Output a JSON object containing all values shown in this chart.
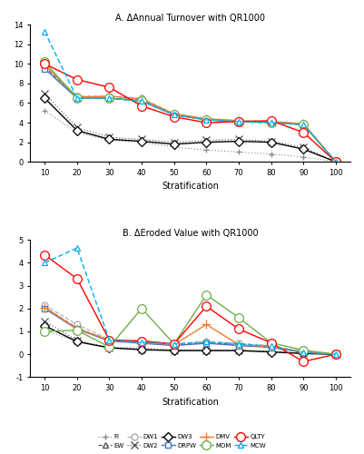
{
  "title_a": "A. ΔAnnual Turnover with QR1000",
  "title_b": "B. ΔEroded Value with QR1000",
  "xlabel": "Stratification",
  "x": [
    10,
    20,
    30,
    40,
    50,
    60,
    70,
    80,
    90,
    100
  ],
  "series_a": {
    "FI": [
      5.2,
      3.0,
      2.2,
      2.0,
      1.5,
      1.2,
      1.0,
      0.8,
      0.5,
      0.0
    ],
    "EW": [
      9.7,
      6.6,
      6.5,
      6.3,
      4.8,
      4.3,
      4.1,
      4.0,
      3.8,
      0.0
    ],
    "DW1": [
      9.8,
      6.7,
      6.7,
      6.5,
      4.9,
      4.4,
      4.2,
      4.1,
      3.9,
      0.0
    ],
    "DW2": [
      7.0,
      3.5,
      2.5,
      2.3,
      2.0,
      2.2,
      2.3,
      2.1,
      1.5,
      0.0
    ],
    "DW3": [
      6.5,
      3.2,
      2.3,
      2.1,
      1.8,
      2.0,
      2.1,
      2.0,
      1.3,
      0.0
    ],
    "DRPW": [
      9.5,
      6.5,
      6.5,
      6.2,
      4.8,
      4.3,
      4.1,
      4.1,
      3.8,
      0.0
    ],
    "DMV": [
      9.9,
      6.6,
      6.7,
      6.4,
      4.9,
      4.4,
      4.2,
      4.1,
      3.9,
      0.0
    ],
    "MOM": [
      10.2,
      6.5,
      6.5,
      6.2,
      4.8,
      4.3,
      4.1,
      4.0,
      3.8,
      0.0
    ],
    "QLTY": [
      10.0,
      8.4,
      7.6,
      5.7,
      4.6,
      4.0,
      4.1,
      4.2,
      3.0,
      0.0
    ],
    "MCW": [
      13.3,
      6.5,
      6.5,
      6.2,
      4.8,
      4.3,
      4.1,
      4.0,
      3.8,
      0.0
    ]
  },
  "series_b": {
    "FI": [
      1.05,
      0.55,
      0.3,
      0.28,
      0.2,
      0.18,
      0.15,
      0.12,
      0.05,
      0.0
    ],
    "EW": [
      2.05,
      1.15,
      0.6,
      0.55,
      0.4,
      0.5,
      0.42,
      0.32,
      0.08,
      0.0
    ],
    "DW1": [
      2.15,
      1.3,
      0.65,
      0.58,
      0.45,
      0.55,
      0.48,
      0.38,
      0.12,
      0.0
    ],
    "DW2": [
      1.45,
      0.6,
      0.3,
      0.22,
      0.18,
      0.18,
      0.18,
      0.12,
      0.04,
      0.0
    ],
    "DW3": [
      1.25,
      0.55,
      0.28,
      0.2,
      0.16,
      0.16,
      0.16,
      0.1,
      0.03,
      0.0
    ],
    "DRPW": [
      2.0,
      1.1,
      0.58,
      0.48,
      0.38,
      0.48,
      0.38,
      0.3,
      0.08,
      0.0
    ],
    "DMV": [
      2.05,
      1.12,
      0.62,
      0.52,
      0.42,
      1.3,
      0.42,
      0.32,
      0.1,
      0.0
    ],
    "MOM": [
      1.0,
      1.05,
      0.32,
      2.0,
      0.45,
      2.6,
      1.6,
      0.5,
      0.18,
      0.0
    ],
    "QLTY": [
      4.35,
      3.3,
      0.62,
      0.58,
      0.45,
      2.1,
      1.1,
      0.5,
      -0.32,
      0.0
    ],
    "MCW": [
      4.0,
      4.65,
      0.62,
      0.52,
      0.45,
      0.55,
      0.45,
      0.35,
      0.08,
      0.0
    ]
  },
  "styles": {
    "FI": {
      "color": "#888888",
      "linestyle": "dotted",
      "marker": "+",
      "markersize": 5,
      "linewidth": 0.8
    },
    "EW": {
      "color": "#555555",
      "linestyle": "dashed",
      "marker": "^",
      "markersize": 5,
      "linewidth": 0.8
    },
    "DW1": {
      "color": "#aaaaaa",
      "linestyle": "dashed",
      "marker": "o",
      "markersize": 5,
      "linewidth": 0.8
    },
    "DW2": {
      "color": "#555555",
      "linestyle": "dotted",
      "marker": "x",
      "markersize": 6,
      "linewidth": 0.8
    },
    "DW3": {
      "color": "#000000",
      "linestyle": "solid",
      "marker": "D",
      "markersize": 5,
      "linewidth": 1.0
    },
    "DRPW": {
      "color": "#4472c4",
      "linestyle": "solid",
      "marker": "s",
      "markersize": 5,
      "linewidth": 1.0
    },
    "DMV": {
      "color": "#ed7d31",
      "linestyle": "solid",
      "marker": "+",
      "markersize": 7,
      "linewidth": 1.0
    },
    "MOM": {
      "color": "#70ad47",
      "linestyle": "solid",
      "marker": "o",
      "markersize": 7,
      "linewidth": 1.0
    },
    "QLTY": {
      "color": "#ff0000",
      "linestyle": "solid",
      "marker": "o",
      "markersize": 7,
      "linewidth": 1.0
    },
    "MCW": {
      "color": "#00b0f0",
      "linestyle": "dashed",
      "marker": "^",
      "markersize": 5,
      "linewidth": 1.0
    }
  },
  "ylim_a": [
    0,
    14
  ],
  "ylim_b": [
    -1,
    5
  ],
  "yticks_a": [
    0,
    2,
    4,
    6,
    8,
    10,
    12,
    14
  ],
  "yticks_b": [
    -1,
    0,
    1,
    2,
    3,
    4,
    5
  ],
  "legend_labels": [
    "FI",
    "EW",
    "DW1",
    "DW2",
    "DW3",
    "DRPW",
    "DMV",
    "MOM",
    "QLTY",
    "MCW"
  ]
}
